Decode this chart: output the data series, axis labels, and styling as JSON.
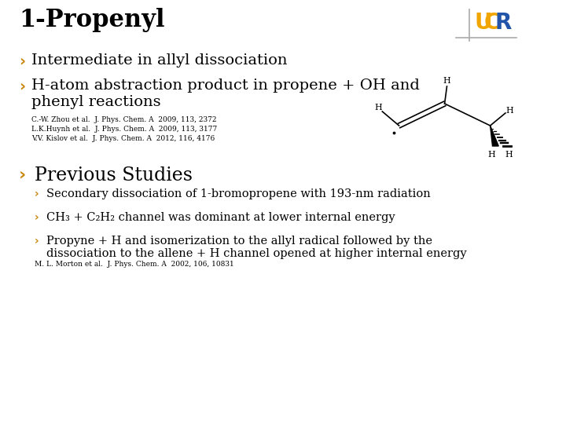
{
  "title": "1-Propenyl",
  "background_color": "#ffffff",
  "title_fontsize": 22,
  "title_color": "#000000",
  "bullet_color": "#c8860a",
  "bullet_char": "›",
  "bullet1": "Intermediate in allyl dissociation",
  "bullet2": "H-atom abstraction product in propene + OH and\nphenyl reactions",
  "bullet_fontsize": 14,
  "references": [
    "C.-W. Zhou et al.  J. Phys. Chem. A  2009, 113, 2372",
    "L.K.Huynh et al.  J. Phys. Chem. A  2009, 113, 3177",
    "V.V. Kislov et al.  J. Phys. Chem. A  2012, 116, 4176"
  ],
  "ref_fontsize": 6.5,
  "sub_section": "Previous Studies",
  "sub_section_fontsize": 17,
  "sub_bullet_fontsize": 10.5,
  "sub_bullets": [
    "Secondary dissociation of 1-bromopropene with 193-nm radiation",
    "CH₃ + C₂H₂ channel was dominant at lower internal energy",
    "Propyne + H and isomerization to the allyl radical followed by the\ndissociation to the allene + H channel opened at higher internal energy"
  ],
  "sub_ref": "M. L. Morton et al.  J. Phys. Chem. A  2002, 106, 10831",
  "sub_ref_fontsize": 6.5,
  "ucr_U_color": "#f0a500",
  "ucr_R_color": "#2255aa",
  "ucr_fontsize": 20,
  "logo_line_color": "#aaaaaa"
}
